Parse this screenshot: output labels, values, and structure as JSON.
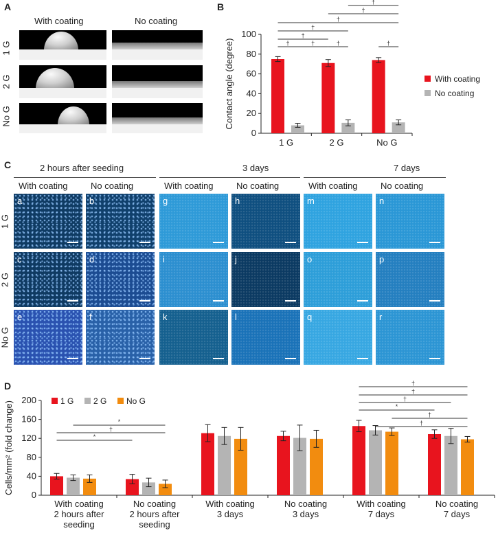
{
  "panelA": {
    "label": "A",
    "col_headers": [
      "With coating",
      "No coating"
    ],
    "row_labels": [
      "1 G",
      "2 G",
      "No G"
    ]
  },
  "panelB": {
    "label": "B",
    "chart_data": {
      "type": "bar",
      "categories": [
        "1 G",
        "2 G",
        "No G"
      ],
      "series": [
        {
          "name": "With coating",
          "values": [
            75,
            71,
            74
          ],
          "errors": [
            2.5,
            3.5,
            2.5
          ],
          "color": "#e8141e"
        },
        {
          "name": "No coating",
          "values": [
            8,
            10.5,
            11
          ],
          "errors": [
            2,
            3,
            2.5
          ],
          "color": "#b4b4b4"
        }
      ],
      "ylabel": "Contact angle (degree)",
      "ylim": [
        0,
        100
      ],
      "yticks": [
        "0",
        "20",
        "40",
        "60",
        "80",
        "100"
      ],
      "legend": "right",
      "sig_brackets": [
        {
          "from": [
            0,
            0
          ],
          "to": [
            0,
            1
          ],
          "mark": "†"
        },
        {
          "from": [
            0,
            1
          ],
          "to": [
            1,
            0
          ],
          "mark": "†"
        },
        {
          "from": [
            1,
            0
          ],
          "to": [
            1,
            1
          ],
          "mark": "†"
        },
        {
          "from": [
            2,
            0
          ],
          "to": [
            2,
            1
          ],
          "mark": "†"
        },
        {
          "from": [
            0,
            0
          ],
          "to": [
            1,
            0
          ],
          "mark": "†"
        },
        {
          "from": [
            0,
            0
          ],
          "to": [
            1,
            1
          ],
          "mark": "†"
        },
        {
          "from": [
            0,
            0
          ],
          "to": [
            2,
            1
          ],
          "mark": "†"
        },
        {
          "from": [
            1,
            0
          ],
          "to": [
            2,
            1
          ],
          "mark": "†"
        },
        {
          "from": [
            1,
            1
          ],
          "to": [
            2,
            1
          ],
          "mark": "†"
        }
      ]
    }
  },
  "panelC": {
    "label": "C",
    "groups": [
      "2 hours after seeding",
      "3 days",
      "7 days"
    ],
    "col_headers": [
      "With coating",
      "No coating",
      "With coating",
      "No coating",
      "With coating",
      "No coating"
    ],
    "row_labels": [
      "1 G",
      "2 G",
      "No G"
    ],
    "cell_letters": [
      [
        "a",
        "b",
        "g",
        "h",
        "m",
        "n"
      ],
      [
        "c",
        "d",
        "i",
        "j",
        "o",
        "p"
      ],
      [
        "e",
        "f",
        "k",
        "l",
        "q",
        "r"
      ]
    ],
    "cell_colors": [
      [
        "#0f3b63",
        "#10406c",
        "#2e9ad8",
        "#0f4f80",
        "#2fa3e0",
        "#2a97d6"
      ],
      [
        "#0f3a62",
        "#1c4c92",
        "#2c8fd0",
        "#0b3a62",
        "#2d9ed9",
        "#247fc0"
      ],
      [
        "#2a52b0",
        "#2961a8",
        "#15608f",
        "#1a72b8",
        "#37a7e2",
        "#2c95d4"
      ]
    ]
  },
  "panelD": {
    "label": "D",
    "chart_data": {
      "type": "bar",
      "categories": [
        "With coating 2 hours after seeding",
        "No coating 2 hours after seeding",
        "With coating 3 days",
        "No coating 3 days",
        "With coating 7 days",
        "No coating 7 days"
      ],
      "category_lines": [
        [
          "With coating",
          "2 hours after",
          "seeding"
        ],
        [
          "No coating",
          "2 hours after",
          "seeding"
        ],
        [
          "With coating",
          "3 days"
        ],
        [
          "No coating",
          "3 days"
        ],
        [
          "With coating",
          "7 days"
        ],
        [
          "No coating",
          "7 days"
        ]
      ],
      "series": [
        {
          "name": "1 G",
          "values": [
            40,
            34,
            131,
            125,
            146,
            129
          ],
          "errors": [
            6,
            10,
            18,
            10,
            12,
            9
          ],
          "color": "#e8141e"
        },
        {
          "name": "2 G",
          "values": [
            37,
            27,
            125,
            121,
            137,
            125
          ],
          "errors": [
            6,
            9,
            18,
            27,
            10,
            16
          ],
          "color": "#b4b4b4"
        },
        {
          "name": "No G",
          "values": [
            35,
            24,
            119,
            119,
            134,
            118
          ],
          "errors": [
            8,
            8,
            24,
            18,
            8,
            6
          ],
          "color": "#f28c0f"
        }
      ],
      "ylabel": "Cells/mm² (fold change)",
      "ylim": [
        0,
        200
      ],
      "yticks": [
        "0",
        "40",
        "80",
        "120",
        "160",
        "200"
      ],
      "legend": "top-left",
      "sig_brackets": [
        {
          "from": [
            0,
            0
          ],
          "to": [
            1,
            0
          ],
          "mark": "*"
        },
        {
          "from": [
            0,
            0
          ],
          "to": [
            1,
            2
          ],
          "mark": "†"
        },
        {
          "from": [
            0,
            1
          ],
          "to": [
            1,
            2
          ],
          "mark": "*"
        },
        {
          "from": [
            4,
            1
          ],
          "to": [
            5,
            2
          ],
          "mark": "†"
        },
        {
          "from": [
            4,
            2
          ],
          "to": [
            5,
            2
          ],
          "mark": "†"
        },
        {
          "from": [
            4,
            0
          ],
          "to": [
            5,
            0
          ],
          "mark": "*"
        },
        {
          "from": [
            4,
            0
          ],
          "to": [
            5,
            1
          ],
          "mark": "†"
        },
        {
          "from": [
            4,
            0
          ],
          "to": [
            5,
            2
          ],
          "mark": "†"
        },
        {
          "from": [
            4,
            0
          ],
          "to": [
            5,
            2
          ],
          "mark": "†"
        }
      ]
    }
  }
}
